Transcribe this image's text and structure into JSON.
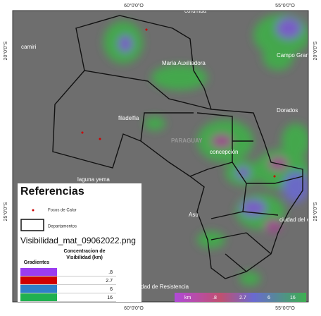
{
  "map": {
    "coordinates": {
      "top": [
        "60°0'0\"O",
        "55°0'0\"O"
      ],
      "bottom": [
        "60°0'0\"O",
        "55°0'0\"O"
      ],
      "left": [
        "20°0'0\"S",
        "25°0'0\"S"
      ],
      "right": [
        "20°0'0\"S",
        "25°0'0\"S"
      ]
    },
    "places": [
      "corumba",
      "camiri",
      "María Auxiliadora",
      "Campo Gran",
      "Dorados",
      "filadelfia",
      "PARAGUAY",
      "concepción",
      "laguna yema",
      "Asu",
      "ciudad del e",
      "dad de Resistencia"
    ],
    "colorbar": {
      "unit": "km",
      "labels": [
        ".8",
        "2.7",
        "6",
        "16"
      ]
    }
  },
  "legend": {
    "title": "Referencias",
    "items": [
      "Focos de Calor",
      "Departamentos"
    ],
    "layer": "Visibilidad_mat_09062022.png",
    "table": {
      "headers": [
        "Gradientes",
        "Concentracion de Visibilidad (km)"
      ],
      "rows": [
        {
          "color": "#9b3cf0",
          "label": ".8"
        },
        {
          "color": "#d00000",
          "label": "2.7"
        },
        {
          "color": "#2f7fc8",
          "label": "6"
        },
        {
          "color": "#20b050",
          "label": "16"
        }
      ]
    }
  }
}
